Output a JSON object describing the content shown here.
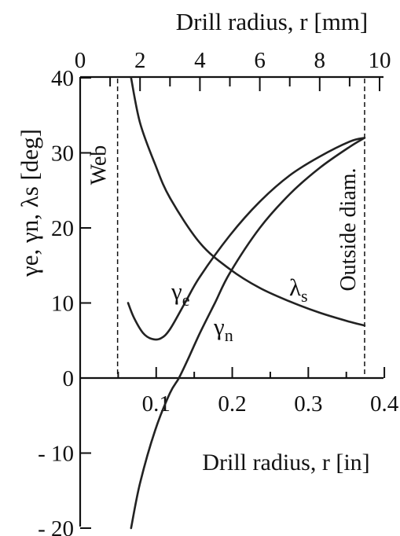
{
  "chart_data": {
    "type": "line",
    "top_axis": {
      "label": "Drill radius, r [mm]",
      "ticks": [
        "0",
        "2",
        "4",
        "6",
        "8",
        "10"
      ],
      "range": [
        0,
        10
      ]
    },
    "bottom_axis": {
      "label": "Drill radius, r [in]",
      "ticks": [
        "0.1",
        "0.2",
        "0.3",
        "0.4"
      ],
      "range": [
        0,
        0.4
      ]
    },
    "y_axis": {
      "label": "γe, γn, λs [deg]",
      "ticks": [
        "40",
        "30",
        "20",
        "10",
        "0",
        "- 10",
        "- 20"
      ],
      "range": [
        -20,
        40
      ]
    },
    "reference_lines": [
      {
        "label": "Web",
        "x_mm": 1.25
      },
      {
        "label": "Outside diam.",
        "x_mm": 9.5
      }
    ],
    "series": [
      {
        "name": "λs",
        "x_mm": [
          1.7,
          2.0,
          2.5,
          3.0,
          4.0,
          5.0,
          6.0,
          7.0,
          8.0,
          9.0,
          9.5
        ],
        "y_deg": [
          40,
          34,
          28.5,
          24,
          18,
          14.5,
          12,
          10.2,
          8.7,
          7.5,
          7
        ]
      },
      {
        "name": "γe",
        "x_mm": [
          1.6,
          1.8,
          2.1,
          2.4,
          2.7,
          3.0,
          3.5,
          4.0,
          5.0,
          6.0,
          7.0,
          8.0,
          9.0,
          9.5
        ],
        "y_deg": [
          10,
          8,
          6,
          5.2,
          5.3,
          6.5,
          10,
          13.5,
          19,
          23.5,
          27,
          29.5,
          31.5,
          32
        ]
      },
      {
        "name": "γn",
        "x_mm": [
          1.7,
          2.0,
          2.5,
          3.0,
          3.3,
          3.6,
          4.0,
          4.5,
          5.0,
          6.0,
          7.0,
          8.0,
          9.0,
          9.5
        ],
        "y_deg": [
          -20,
          -14,
          -7,
          -2,
          0,
          2.5,
          6,
          10,
          14,
          20,
          24.5,
          28,
          30.8,
          32
        ]
      }
    ]
  }
}
